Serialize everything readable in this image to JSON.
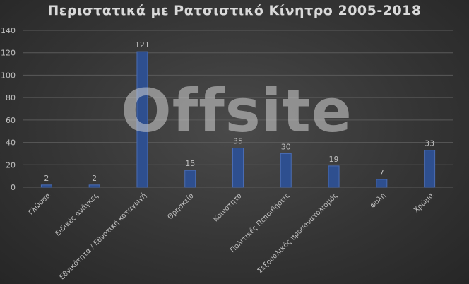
{
  "chart_data": {
    "type": "bar",
    "title": "Περιστατικά με Ρατσιστικό Κίνητρο 2005-2018",
    "categories": [
      "Γλώσσα",
      "Ειδικές ανάγκες",
      "Εθνικότητα / Εθνοτική καταγωγή",
      "Θρησκεία",
      "Κοινότητα",
      "Πολιτικές Πεποιθήσεις",
      "Σεξουαλικός προσανατολισμός",
      "Φυλή",
      "Χρώμα"
    ],
    "values": [
      2,
      2,
      121,
      15,
      35,
      30,
      19,
      7,
      33
    ],
    "ylim": [
      0,
      140
    ],
    "yticks": [
      0,
      20,
      40,
      60,
      80,
      100,
      120,
      140
    ],
    "xlabel": "",
    "ylabel": "",
    "grid": true,
    "data_labels": true,
    "colors": {
      "bar": "#2e4f8f",
      "bar_edge": "#4a6cb3",
      "grid": "#5a5a5a",
      "text": "#bfbfbf"
    }
  },
  "watermark": {
    "text": "Offsite"
  }
}
